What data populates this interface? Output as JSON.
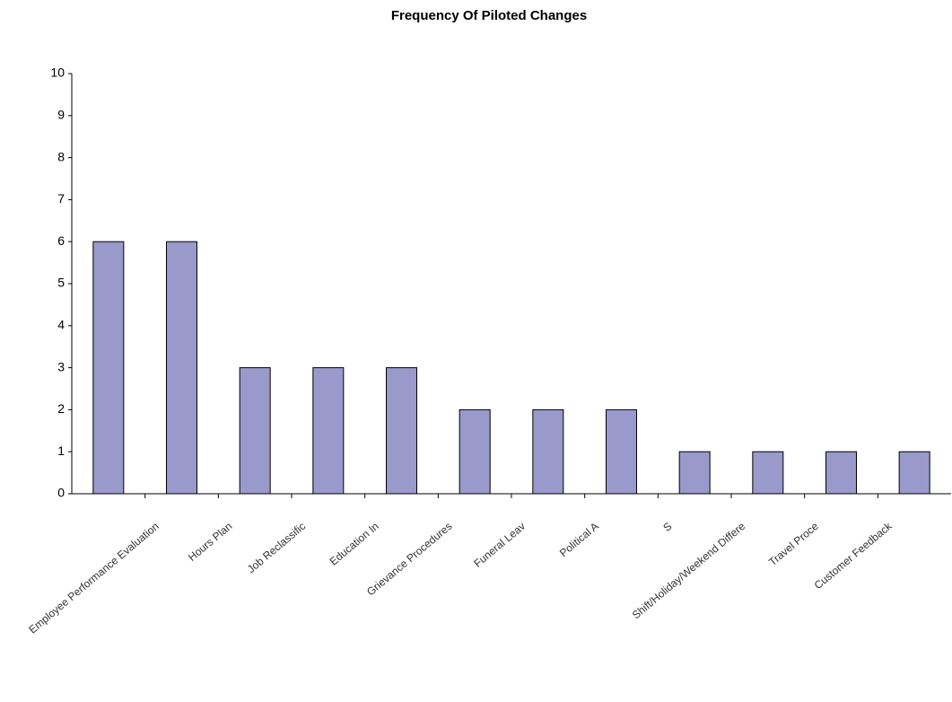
{
  "chart_data": {
    "type": "bar",
    "title": "Frequency Of Piloted Changes",
    "categories": [
      "Employee Performance Evaluation",
      "Hours Plan",
      "Job Reclassific",
      "Education In",
      "Grievance Procedures",
      "Funeral Leav",
      "Political A",
      "S",
      "Shift/Holiday/Weekend Differe",
      "Travel Proce",
      "Customer Feedback",
      null
    ],
    "values": [
      6,
      6,
      3,
      3,
      3,
      2,
      2,
      2,
      1,
      1,
      1,
      1
    ],
    "color": "#9999cc",
    "ylim": [
      0,
      10
    ],
    "yticks": [
      0,
      1,
      2,
      3,
      4,
      5,
      6,
      7,
      8,
      9,
      10
    ],
    "grid": false
  }
}
